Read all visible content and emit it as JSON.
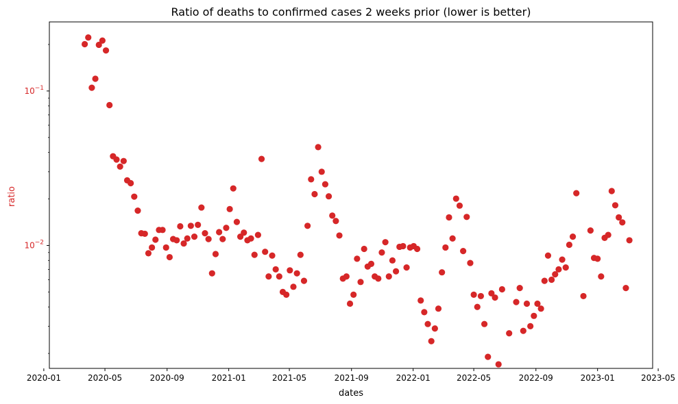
{
  "chart_data": {
    "type": "scatter",
    "title": "Ratio of deaths to confirmed cases 2 weeks prior (lower is better)",
    "xlabel": "dates",
    "ylabel": "ratio",
    "yscale": "log",
    "ylim": [
      0.0016,
      0.28
    ],
    "xlim": [
      "2020-01-12",
      "2023-04-20"
    ],
    "grid": false,
    "marker_color": "#d62728",
    "ylabel_color": "#d62728",
    "x_ticks": [
      "2020-01",
      "2020-05",
      "2020-09",
      "2021-01",
      "2021-05",
      "2021-09",
      "2022-01",
      "2022-05",
      "2022-09",
      "2023-01",
      "2023-05"
    ],
    "y_ticks": [
      {
        "value": 0.1,
        "base": "10",
        "exponent": "−1"
      },
      {
        "value": 0.01,
        "base": "10",
        "exponent": "−2"
      }
    ],
    "series": [
      {
        "x": [
          "2020-03-22",
          "2020-03-29",
          "2020-04-05",
          "2020-04-12",
          "2020-04-19",
          "2020-04-26",
          "2020-05-03",
          "2020-05-10",
          "2020-05-17",
          "2020-05-24",
          "2020-05-31",
          "2020-06-07",
          "2020-06-14",
          "2020-06-21",
          "2020-06-28",
          "2020-07-05",
          "2020-07-12",
          "2020-07-19",
          "2020-07-26",
          "2020-08-02",
          "2020-08-09",
          "2020-08-16",
          "2020-08-23",
          "2020-08-30",
          "2020-09-06",
          "2020-09-13",
          "2020-09-20",
          "2020-09-27",
          "2020-10-04",
          "2020-10-11",
          "2020-10-18",
          "2020-10-25",
          "2020-11-01",
          "2020-11-08",
          "2020-11-15",
          "2020-11-22",
          "2020-11-29",
          "2020-12-06",
          "2020-12-13",
          "2020-12-20",
          "2020-12-27",
          "2021-01-03",
          "2021-01-10",
          "2021-01-17",
          "2021-01-24",
          "2021-01-31",
          "2021-02-07",
          "2021-02-14",
          "2021-02-21",
          "2021-02-28",
          "2021-03-07",
          "2021-03-14",
          "2021-03-21",
          "2021-03-28",
          "2021-04-04",
          "2021-04-11",
          "2021-04-18",
          "2021-04-25",
          "2021-05-02",
          "2021-05-09",
          "2021-05-16",
          "2021-05-23",
          "2021-05-30",
          "2021-06-06",
          "2021-06-13",
          "2021-06-20",
          "2021-06-27",
          "2021-07-04",
          "2021-07-11",
          "2021-07-18",
          "2021-07-25",
          "2021-08-01",
          "2021-08-08",
          "2021-08-15",
          "2021-08-22",
          "2021-08-29",
          "2021-09-05",
          "2021-09-12",
          "2021-09-19",
          "2021-09-26",
          "2021-10-03",
          "2021-10-10",
          "2021-10-17",
          "2021-10-24",
          "2021-10-31",
          "2021-11-07",
          "2021-11-14",
          "2021-11-21",
          "2021-11-28",
          "2021-12-05",
          "2021-12-12",
          "2021-12-19",
          "2021-12-26",
          "2022-01-02",
          "2022-01-09",
          "2022-01-16",
          "2022-01-23",
          "2022-01-30",
          "2022-02-06",
          "2022-02-13",
          "2022-02-20",
          "2022-02-27",
          "2022-03-06",
          "2022-03-13",
          "2022-03-20",
          "2022-03-27",
          "2022-04-03",
          "2022-04-10",
          "2022-04-17",
          "2022-04-24",
          "2022-05-01",
          "2022-05-08",
          "2022-05-15",
          "2022-05-22",
          "2022-05-29",
          "2022-06-05",
          "2022-06-12",
          "2022-06-19",
          "2022-06-26",
          "2022-07-10",
          "2022-07-24",
          "2022-07-31",
          "2022-08-07",
          "2022-08-14",
          "2022-08-21",
          "2022-08-28",
          "2022-09-04",
          "2022-09-11",
          "2022-09-18",
          "2022-09-25",
          "2022-10-02",
          "2022-10-09",
          "2022-10-16",
          "2022-10-23",
          "2022-10-30",
          "2022-11-06",
          "2022-11-13",
          "2022-11-20",
          "2022-12-04",
          "2022-12-18",
          "2022-12-25",
          "2023-01-01",
          "2023-01-08",
          "2023-01-15",
          "2023-01-22",
          "2023-01-29",
          "2023-02-05",
          "2023-02-12",
          "2023-02-19",
          "2023-02-26",
          "2023-03-05"
        ],
        "y": [
          0.201,
          0.222,
          0.105,
          0.12,
          0.199,
          0.212,
          0.183,
          0.081,
          0.0378,
          0.036,
          0.0324,
          0.0352,
          0.0264,
          0.0253,
          0.0207,
          0.0168,
          0.012,
          0.0119,
          0.0089,
          0.0097,
          0.0109,
          0.0126,
          0.0126,
          0.0097,
          0.0084,
          0.011,
          0.0108,
          0.0133,
          0.0103,
          0.0111,
          0.0134,
          0.0114,
          0.0136,
          0.0176,
          0.012,
          0.011,
          0.0066,
          0.0088,
          0.0122,
          0.011,
          0.013,
          0.0172,
          0.0234,
          0.0142,
          0.0114,
          0.0121,
          0.0108,
          0.0111,
          0.0087,
          0.0117,
          0.0363,
          0.0091,
          0.0063,
          0.0086,
          0.007,
          0.0063,
          0.005,
          0.0048,
          0.0069,
          0.0054,
          0.0066,
          0.0087,
          0.0059,
          0.0134,
          0.0268,
          0.0215,
          0.0433,
          0.03,
          0.0249,
          0.0208,
          0.0156,
          0.0144,
          0.0116,
          0.0061,
          0.0063,
          0.0042,
          0.0048,
          0.0082,
          0.0058,
          0.0095,
          0.0073,
          0.0076,
          0.0063,
          0.0061,
          0.009,
          0.0105,
          0.0063,
          0.008,
          0.0068,
          0.0098,
          0.0099,
          0.0072,
          0.0097,
          0.0099,
          0.0095,
          0.0044,
          0.0037,
          0.0031,
          0.0024,
          0.0029,
          0.0039,
          0.0067,
          0.0097,
          0.0152,
          0.0111,
          0.0201,
          0.0181,
          0.0092,
          0.0153,
          0.0077,
          0.0048,
          0.004,
          0.0047,
          0.0031,
          0.0019,
          0.0049,
          0.0046,
          0.0017,
          0.0052,
          0.0027,
          0.0043,
          0.0053,
          0.0028,
          0.0042,
          0.003,
          0.0035,
          0.0042,
          0.0039,
          0.0059,
          0.0086,
          0.006,
          0.0065,
          0.007,
          0.0081,
          0.0072,
          0.0101,
          0.0114,
          0.0218,
          0.0047,
          0.0125,
          0.0083,
          0.0082,
          0.0063,
          0.0112,
          0.0117,
          0.0225,
          0.0182,
          0.0152,
          0.0141,
          0.0053,
          0.0108
        ]
      }
    ]
  }
}
